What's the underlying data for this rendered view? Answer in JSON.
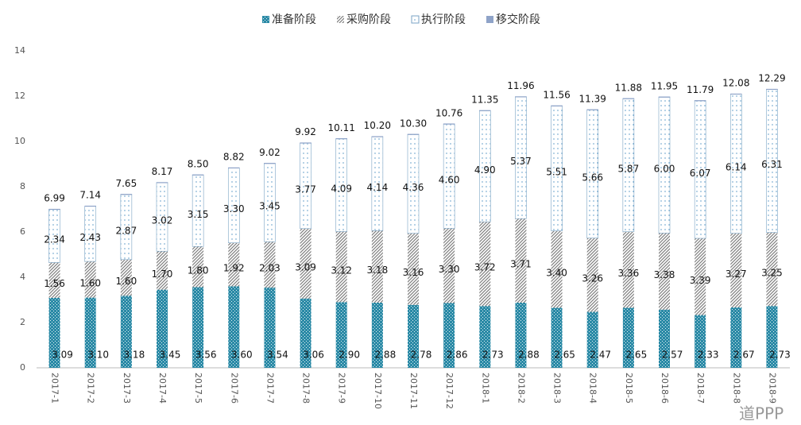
{
  "chart_data": {
    "type": "bar",
    "stacked": true,
    "categories": [
      "2017-1",
      "2017-2",
      "2017-3",
      "2017-4",
      "2017-5",
      "2017-6",
      "2017-7",
      "2017-8",
      "2017-9",
      "2017-10",
      "2017-11",
      "2017-12",
      "2018-1",
      "2018-2",
      "2018-3",
      "2018-4",
      "2018-5",
      "2018-6",
      "2018-7",
      "2018-8",
      "2018-9"
    ],
    "series": [
      {
        "name": "准备阶段",
        "color": "#2b8aa6",
        "values": [
          3.09,
          3.1,
          3.18,
          3.45,
          3.56,
          3.6,
          3.54,
          3.06,
          2.9,
          2.88,
          2.78,
          2.86,
          2.73,
          2.88,
          2.65,
          2.47,
          2.65,
          2.57,
          2.33,
          2.67,
          2.73
        ],
        "value_labels": [
          "3.09",
          "3.10",
          "3.18",
          "3.45",
          "3.56",
          "3.60",
          "3.54",
          "3.06",
          "2.90",
          "2.88",
          "2.78",
          "2.86",
          "2.73",
          "2.88",
          "2.65",
          "2.47",
          "2.65",
          "2.57",
          "2.33",
          "2.67",
          "2.73"
        ]
      },
      {
        "name": "采购阶段",
        "color": "#7f7f7f",
        "values": [
          1.56,
          1.6,
          1.6,
          1.7,
          1.8,
          1.92,
          2.03,
          3.09,
          3.12,
          3.18,
          3.16,
          3.3,
          3.72,
          3.71,
          3.4,
          3.26,
          3.36,
          3.38,
          3.39,
          3.27,
          3.25
        ],
        "value_labels": [
          "1.56",
          "1.60",
          "1.60",
          "1.70",
          "1.80",
          "1.92",
          "2.03",
          "3.09",
          "3.12",
          "3.18",
          "3.16",
          "3.30",
          "3.72",
          "3.71",
          "3.40",
          "3.26",
          "3.36",
          "3.38",
          "3.39",
          "3.27",
          "3.25"
        ]
      },
      {
        "name": "执行阶段",
        "color": "#4a8fc0",
        "values": [
          2.34,
          2.43,
          2.87,
          3.02,
          3.15,
          3.3,
          3.45,
          3.77,
          4.09,
          4.14,
          4.36,
          4.6,
          4.9,
          5.37,
          5.51,
          5.66,
          5.87,
          6.0,
          6.07,
          6.14,
          6.31
        ],
        "value_labels": [
          "2.34",
          "2.43",
          "2.87",
          "3.02",
          "3.15",
          "3.30",
          "3.45",
          "3.77",
          "4.09",
          "4.14",
          "4.36",
          "4.60",
          "4.90",
          "5.37",
          "5.51",
          "5.66",
          "5.87",
          "6.00",
          "6.07",
          "6.14",
          "6.31"
        ]
      },
      {
        "name": "移交阶段",
        "color": "#8fa3c8",
        "values": [
          0.02,
          0.02,
          0.02,
          0.02,
          0.02,
          0.02,
          0.02,
          0.02,
          0.02,
          0.02,
          0.02,
          0.02,
          0.02,
          0.02,
          0.02,
          0.02,
          0.02,
          0.02,
          0.02,
          0.02,
          0.02
        ]
      }
    ],
    "total_labels": [
      "6.99",
      "7.14",
      "7.65",
      "8.17",
      "8.50",
      "8.82",
      "9.02",
      "9.92",
      "10.11",
      "10.20",
      "10.30",
      "10.76",
      "11.35",
      "11.96",
      "11.56",
      "11.39",
      "11.88",
      "11.95",
      "11.79",
      "12.08",
      "12.29"
    ],
    "ylim": [
      0,
      14
    ],
    "yticks": [
      0,
      2,
      4,
      6,
      8,
      10,
      12,
      14
    ],
    "grid": false,
    "watermark": "道PPP"
  }
}
